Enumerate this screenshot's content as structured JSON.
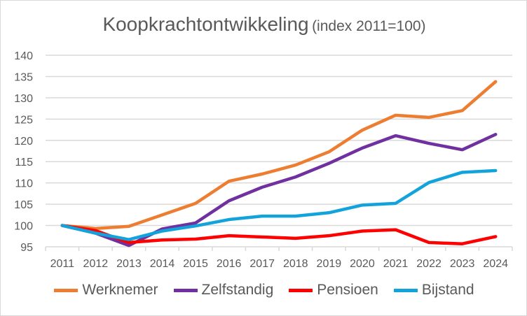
{
  "chart_data": {
    "type": "line",
    "title": "Koopkrachtontwikkeling",
    "subtitle": "(index 2011=100)",
    "xlabel": "",
    "ylabel": "",
    "ylim": [
      95,
      140
    ],
    "yticks": [
      95,
      100,
      105,
      110,
      115,
      120,
      125,
      130,
      135,
      140
    ],
    "grid": true,
    "legend": "bottom",
    "categories": [
      "2011",
      "2012",
      "2013",
      "2014",
      "2015",
      "2016",
      "2017",
      "2018",
      "2019",
      "2020",
      "2021",
      "2022",
      "2023",
      "2024"
    ],
    "series": [
      {
        "name": "Werknemer",
        "color": "#ED7D31",
        "values": [
          100,
          99.3,
          99.8,
          102.5,
          105.2,
          110.4,
          112.1,
          114.2,
          117.3,
          122.4,
          125.9,
          125.4,
          127.0,
          133.8
        ]
      },
      {
        "name": "Zelfstandig",
        "color": "#7030A0",
        "values": [
          100,
          98.2,
          95.3,
          99.2,
          100.6,
          105.8,
          109.0,
          111.4,
          114.6,
          118.2,
          121.1,
          119.3,
          117.8,
          121.4
        ]
      },
      {
        "name": "Pensioen",
        "color": "#FF0000",
        "values": [
          100,
          98.8,
          96.0,
          96.6,
          96.8,
          97.6,
          97.3,
          97.0,
          97.6,
          98.7,
          99.0,
          96.0,
          95.7,
          97.4
        ]
      },
      {
        "name": "Bijstand",
        "color": "#13A3DB",
        "values": [
          100,
          98.2,
          96.7,
          98.7,
          99.9,
          101.4,
          102.2,
          102.2,
          103.0,
          104.8,
          105.2,
          110.1,
          112.5,
          112.9
        ]
      }
    ]
  }
}
